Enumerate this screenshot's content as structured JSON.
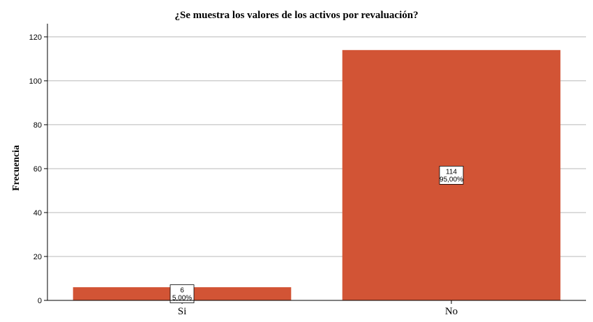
{
  "chart_data": {
    "type": "bar",
    "title": "¿Se muestra los valores de los activos por revaluación?",
    "xlabel": "",
    "ylabel": "Frecuencia",
    "categories": [
      "Si",
      "No"
    ],
    "values": [
      6,
      114
    ],
    "value_labels": [
      "6",
      "114"
    ],
    "percent_labels": [
      "5,00%",
      "95,00%"
    ],
    "ylim": [
      0,
      126
    ],
    "yticks": [
      0,
      20,
      40,
      60,
      80,
      100,
      120
    ],
    "grid": true,
    "bar_color": "#d25435",
    "grid_color": "#b8b8b8"
  }
}
